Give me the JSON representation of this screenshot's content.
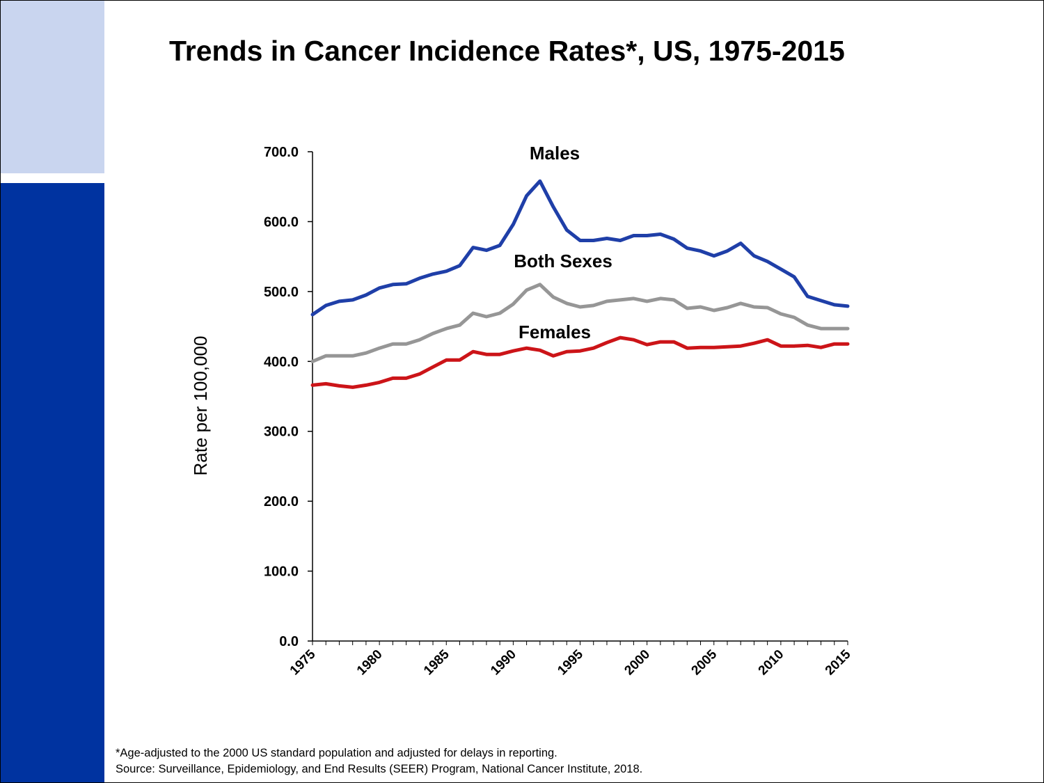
{
  "title": "Trends in Cancer Incidence Rates*, US, 1975-2015",
  "colors": {
    "sidebar_light": "#c9d5ef",
    "sidebar_dark": "#0033a0",
    "males": "#1f3fa8",
    "both_sexes": "#969696",
    "females": "#cc1418"
  },
  "chart_data": {
    "type": "line",
    "title": "Trends in Cancer Incidence Rates*, US, 1975-2015",
    "xlabel": "",
    "ylabel": "Rate per 100,000",
    "ylim": [
      0,
      700
    ],
    "xlim": [
      1975,
      2015
    ],
    "y_ticks": [
      "0.0",
      "100.0",
      "200.0",
      "300.0",
      "400.0",
      "500.0",
      "600.0",
      "700.0"
    ],
    "x_ticks": [
      "1975",
      "1980",
      "1985",
      "1990",
      "1995",
      "2000",
      "2005",
      "2010",
      "2015"
    ],
    "x": [
      1975,
      1976,
      1977,
      1978,
      1979,
      1980,
      1981,
      1982,
      1983,
      1984,
      1985,
      1986,
      1987,
      1988,
      1989,
      1990,
      1991,
      1992,
      1993,
      1994,
      1995,
      1996,
      1997,
      1998,
      1999,
      2000,
      2001,
      2002,
      2003,
      2004,
      2005,
      2006,
      2007,
      2008,
      2009,
      2010,
      2011,
      2012,
      2013,
      2014,
      2015
    ],
    "series": [
      {
        "name": "Males",
        "color": "#1f3fa8",
        "values": [
          467,
          480,
          486,
          488,
          495,
          505,
          510,
          511,
          519,
          525,
          529,
          537,
          563,
          559,
          566,
          596,
          637,
          658,
          621,
          588,
          573,
          573,
          576,
          573,
          580,
          580,
          582,
          575,
          562,
          558,
          551,
          558,
          569,
          551,
          543,
          532,
          521,
          493,
          487,
          481,
          479
        ]
      },
      {
        "name": "Both Sexes",
        "color": "#969696",
        "values": [
          400,
          408,
          408,
          408,
          412,
          419,
          425,
          425,
          431,
          440,
          447,
          452,
          469,
          464,
          469,
          482,
          502,
          510,
          492,
          483,
          478,
          480,
          486,
          488,
          490,
          486,
          490,
          488,
          476,
          478,
          473,
          477,
          483,
          478,
          477,
          468,
          463,
          452,
          447,
          447,
          447
        ]
      },
      {
        "name": "Females",
        "color": "#cc1418",
        "values": [
          366,
          368,
          365,
          363,
          366,
          370,
          376,
          376,
          382,
          392,
          402,
          402,
          414,
          410,
          410,
          415,
          419,
          416,
          408,
          414,
          415,
          419,
          427,
          434,
          431,
          424,
          428,
          428,
          419,
          420,
          420,
          421,
          422,
          426,
          431,
          422,
          422,
          423,
          420,
          425,
          425
        ]
      }
    ],
    "annotations": [
      "Males",
      "Both Sexes",
      "Females"
    ]
  },
  "footnote": "*Age-adjusted to the 2000 US standard population and adjusted for delays in reporting.",
  "source": "Source: Surveillance, Epidemiology, and End Results (SEER) Program, National Cancer Institute, 2018."
}
